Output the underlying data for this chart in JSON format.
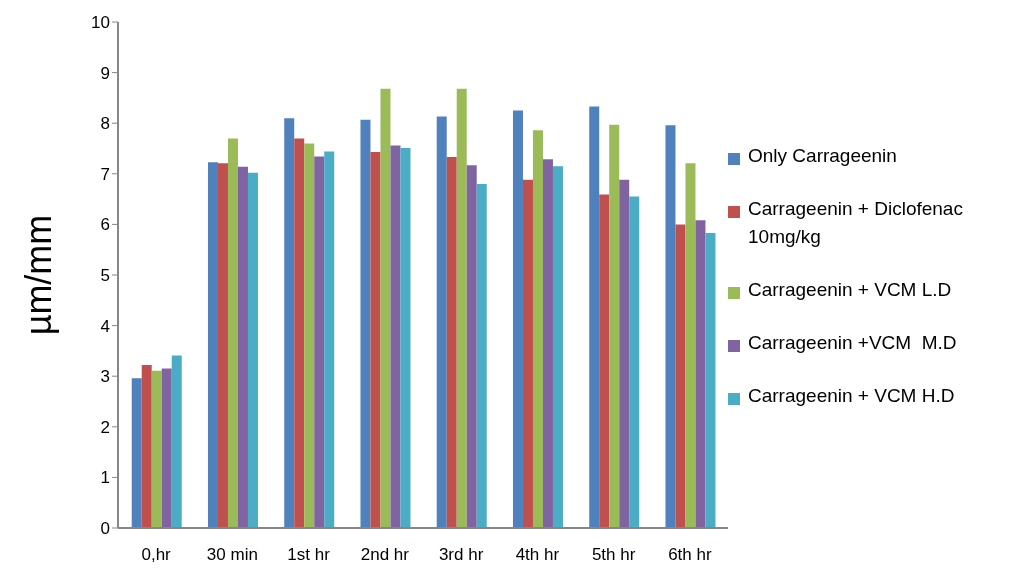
{
  "chart_data": {
    "type": "bar",
    "ylabel": "µm/mm",
    "categories": [
      "0,hr",
      "30 min",
      "1st hr",
      "2nd hr",
      "3rd hr",
      "4th hr",
      "5th hr",
      "6th hr"
    ],
    "series": [
      {
        "name": "Only Carrageenin",
        "color": "#4f81bd",
        "values": [
          2.96,
          7.23,
          8.1,
          8.07,
          8.13,
          8.25,
          8.33,
          7.96
        ]
      },
      {
        "name": "Carrageenin + Diclofenac 10mg/kg",
        "color": "#c0504d",
        "values": [
          3.22,
          7.21,
          7.7,
          7.43,
          7.33,
          6.88,
          6.59,
          6.0
        ]
      },
      {
        "name": "Carrageenin + VCM L.D",
        "color": "#9bbb59",
        "values": [
          3.11,
          7.7,
          7.6,
          8.68,
          8.68,
          7.86,
          7.97,
          7.21
        ]
      },
      {
        "name": "Carrageenin +VCM  M.D",
        "color": "#8064a2",
        "values": [
          3.15,
          7.14,
          7.34,
          7.56,
          7.17,
          7.29,
          6.88,
          6.08
        ]
      },
      {
        "name": "Carrageenin + VCM H.D",
        "color": "#4bacc6",
        "values": [
          3.41,
          7.02,
          7.44,
          7.51,
          6.8,
          7.15,
          6.55,
          5.83
        ]
      }
    ],
    "ylim": [
      0,
      10
    ],
    "yticks": [
      0,
      1,
      2,
      3,
      4,
      5,
      6,
      7,
      8,
      9,
      10
    ],
    "grid": false,
    "legend": "right"
  }
}
